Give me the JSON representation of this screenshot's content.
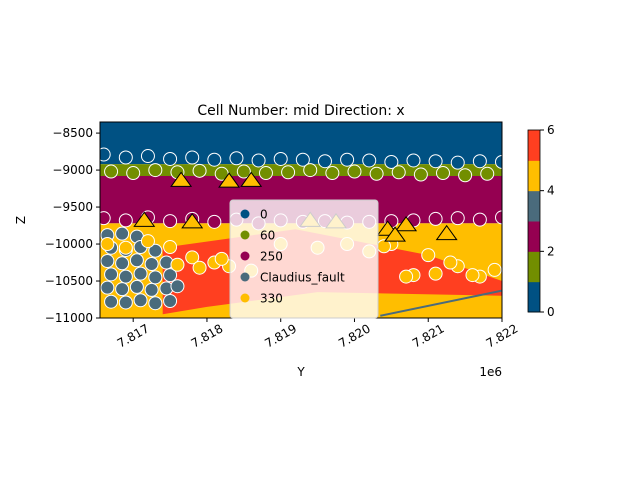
{
  "chart_data": {
    "type": "scatter",
    "title": "Cell Number: mid Direction: x",
    "xlabel": "Y",
    "ylabel": "Z",
    "x_offset_label": "1e6",
    "xlim": [
      7816.55,
      7822.0
    ],
    "ylim": [
      -11000,
      -8350
    ],
    "x_ticks": [
      7817,
      7818,
      7819,
      7820,
      7821,
      7822
    ],
    "x_tick_labels": [
      "7.817",
      "7.818",
      "7.819",
      "7.820",
      "7.821",
      "7.822"
    ],
    "y_ticks": [
      -8500,
      -9000,
      -9500,
      -10000,
      -10500,
      -11000
    ],
    "y_tick_labels": [
      "−8500",
      "−9000",
      "−9500",
      "−10000",
      "−10500",
      "−11000"
    ],
    "grid": false,
    "legend_placement": "lower-center",
    "colors": {
      "unit_0": "#005183",
      "unit_60": "#728e00",
      "unit_250": "#950051",
      "fault": "#4a6b7c",
      "unit_330": "#ffbe00",
      "basement": "#ff3f20"
    },
    "legend": [
      {
        "label": "0",
        "color": "#005183"
      },
      {
        "label": "60",
        "color": "#728e00"
      },
      {
        "label": "250",
        "color": "#950051"
      },
      {
        "label": "Claudius_fault",
        "color": "#4a6b7c"
      },
      {
        "label": "330",
        "color": "#ffbe00"
      }
    ],
    "layers": [
      {
        "name": "0",
        "color": "#005183",
        "top": -8350,
        "bottom": -8920
      },
      {
        "name": "60",
        "color": "#728e00",
        "top": -8920,
        "bottom": -9080
      },
      {
        "name": "250",
        "color": "#950051",
        "top": -9080,
        "bottom": -9720
      },
      {
        "name": "330",
        "color": "#ffbe00",
        "top": -9720,
        "bottom": -11000
      }
    ],
    "fault_line": {
      "x": [
        7820.35,
        7822.0
      ],
      "y": [
        -10970,
        -10630
      ]
    },
    "series": [
      {
        "name": "0",
        "color": "#005183",
        "x": [
          7816.6,
          7816.9,
          7817.2,
          7817.5,
          7817.8,
          7818.1,
          7818.4,
          7818.7,
          7819.0,
          7819.3,
          7819.6,
          7819.9,
          7820.2,
          7820.5,
          7820.8,
          7821.1,
          7821.4,
          7821.7,
          7822.0
        ],
        "y": [
          -8790,
          -8830,
          -8810,
          -8850,
          -8830,
          -8860,
          -8840,
          -8870,
          -8850,
          -8860,
          -8880,
          -8860,
          -8870,
          -8890,
          -8870,
          -8880,
          -8900,
          -8880,
          -8890
        ]
      },
      {
        "name": "60",
        "color": "#728e00",
        "x": [
          7816.7,
          7817.0,
          7817.3,
          7817.6,
          7817.9,
          7818.2,
          7818.5,
          7818.8,
          7819.1,
          7819.4,
          7819.7,
          7820.0,
          7820.3,
          7820.6,
          7820.9,
          7821.2,
          7821.5,
          7821.8
        ],
        "y": [
          -9020,
          -9040,
          -9000,
          -9030,
          -9010,
          -9050,
          -9020,
          -9040,
          -9030,
          -9000,
          -9040,
          -9020,
          -9050,
          -9030,
          -9060,
          -9040,
          -9070,
          -9050
        ]
      },
      {
        "name": "250",
        "color": "#950051",
        "x": [
          7816.6,
          7816.9,
          7817.2,
          7817.5,
          7817.8,
          7818.1,
          7818.4,
          7818.7,
          7819.0,
          7819.3,
          7819.6,
          7819.9,
          7820.2,
          7820.5,
          7820.8,
          7821.1,
          7821.4,
          7821.7,
          7822.0
        ],
        "y": [
          -9650,
          -9680,
          -9640,
          -9690,
          -9660,
          -9700,
          -9670,
          -9720,
          -9680,
          -9700,
          -9690,
          -9710,
          -9700,
          -9690,
          -9680,
          -9660,
          -9650,
          -9670,
          -9640
        ]
      },
      {
        "name": "Claudius_fault",
        "color": "#4a6b7c",
        "x": [
          7816.65,
          7816.85,
          7817.05,
          7816.7,
          7816.9,
          7817.1,
          7817.3,
          7816.65,
          7816.85,
          7817.05,
          7817.25,
          7817.45,
          7816.7,
          7816.9,
          7817.1,
          7817.3,
          7817.5,
          7816.65,
          7816.85,
          7817.05,
          7817.25,
          7817.45,
          7817.6,
          7816.7,
          7816.9,
          7817.1,
          7817.3,
          7817.5
        ],
        "y": [
          -9880,
          -9860,
          -9900,
          -10050,
          -10080,
          -10040,
          -10090,
          -10230,
          -10260,
          -10220,
          -10270,
          -10250,
          -10410,
          -10440,
          -10400,
          -10450,
          -10420,
          -10590,
          -10610,
          -10580,
          -10620,
          -10600,
          -10570,
          -10780,
          -10790,
          -10760,
          -10800,
          -10770
        ]
      },
      {
        "name": "330",
        "color": "#ffbe00",
        "x": [
          7816.65,
          7816.9,
          7817.2,
          7817.5,
          7817.8,
          7818.1,
          7818.3,
          7818.6,
          7819.0,
          7819.5,
          7819.9,
          7820.2,
          7820.5,
          7820.8,
          7821.1,
          7821.4,
          7821.7,
          7821.9,
          7817.6,
          7817.9,
          7818.2,
          7821.0,
          7821.3,
          7821.6,
          7820.4,
          7820.7
        ],
        "y": [
          -10000,
          -10050,
          -9960,
          -10040,
          -10180,
          -10250,
          -10300,
          -10360,
          -10000,
          -10050,
          -10000,
          -10100,
          -10000,
          -10420,
          -10400,
          -10300,
          -10440,
          -10350,
          -10280,
          -10320,
          -10200,
          -10150,
          -10250,
          -10420,
          -10030,
          -10440
        ]
      }
    ],
    "orientations": {
      "color": "#ffbe00",
      "x": [
        7817.65,
        7818.3,
        7818.6,
        7817.15,
        7817.8,
        7819.4,
        7819.75,
        7820.45,
        7820.7,
        7820.55,
        7821.25
      ],
      "y": [
        -9140,
        -9150,
        -9140,
        -9680,
        -9700,
        -9680,
        -9700,
        -9800,
        -9740,
        -9880,
        -9860
      ]
    },
    "colorbar": {
      "ticks": [
        0,
        2,
        4,
        6
      ],
      "tick_labels": [
        "0",
        "2",
        "4",
        "6"
      ],
      "range": [
        0,
        6
      ],
      "segments": [
        "#005183",
        "#728e00",
        "#950051",
        "#4a6b7c",
        "#ffbe00",
        "#ff3f20"
      ]
    }
  }
}
